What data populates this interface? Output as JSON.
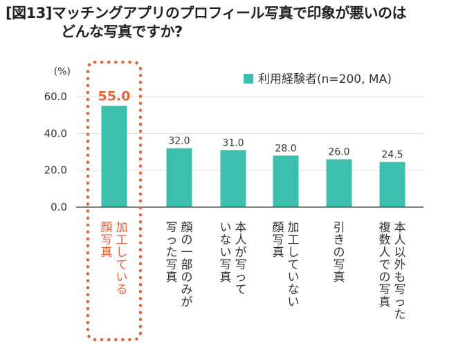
{
  "title": {
    "line1": "[図13]マッチングアプリのプロフィール写真で印象が悪いのは",
    "line2": "どんな写真ですか?"
  },
  "chart_data": {
    "type": "bar",
    "unit_label": "(%)",
    "ylim": [
      0,
      60
    ],
    "yticks": [
      "0.0",
      "20.0",
      "40.0",
      "60.0"
    ],
    "grid": true,
    "legend_position": "top-right",
    "series": [
      {
        "name": "利用経験者(n=200, MA)",
        "values": [
          55.0,
          32.0,
          31.0,
          28.0,
          26.0,
          24.5
        ],
        "labels": [
          "55.0",
          "32.0",
          "31.0",
          "28.0",
          "26.0",
          "24.5"
        ]
      }
    ],
    "categories": [
      [
        "加工している",
        "顔写真"
      ],
      [
        "顔の一部のみが",
        "写った写真"
      ],
      [
        "本人が写って",
        "いない写真"
      ],
      [
        "加工していない",
        "顔写真"
      ],
      [
        "引きの写真"
      ],
      [
        "本人以外も写った",
        "複数人での写真"
      ]
    ],
    "highlight_index": 0
  },
  "colors": {
    "bar": "#3dbfae",
    "highlight": "#e0643a",
    "axis": "#555555",
    "grid": "#dddddd"
  }
}
